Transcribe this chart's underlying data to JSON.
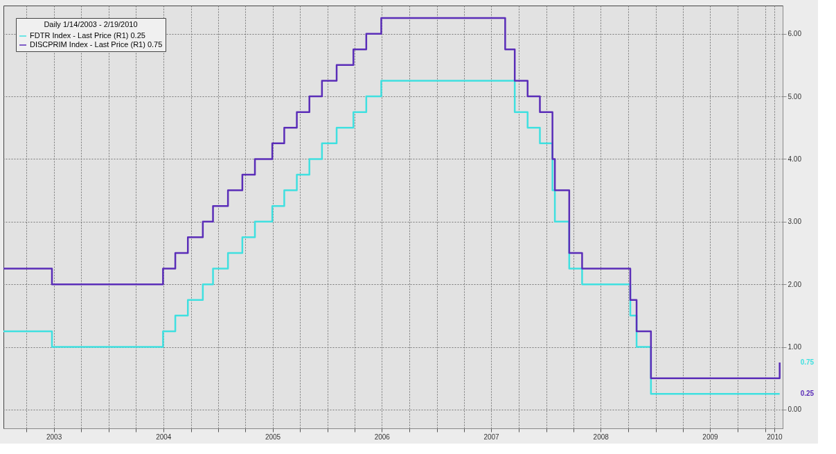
{
  "chart_data": {
    "type": "step",
    "legend_title": "Daily 1/14/2003 - 2/19/2010",
    "legend": "top left",
    "grid": true,
    "line_style": "solid",
    "marker": "none",
    "xlim": [
      "2003-01-14",
      "2010-03-01"
    ],
    "ylim": [
      -0.3,
      6.45
    ],
    "yticks": [
      {
        "value": 0,
        "label": "0.00"
      },
      {
        "value": 1,
        "label": "1.00"
      },
      {
        "value": 2,
        "label": "2.00"
      },
      {
        "value": 3,
        "label": "3.00"
      },
      {
        "value": 4,
        "label": "4.00"
      },
      {
        "value": 5,
        "label": "5.00"
      },
      {
        "value": 6,
        "label": "6.00"
      }
    ],
    "xticks": [
      {
        "value": "2003-04-01",
        "label": null
      },
      {
        "value": "2003-07-01",
        "label": "2003"
      },
      {
        "value": "2003-10-01",
        "label": null
      },
      {
        "value": "2004-01-01",
        "label": null
      },
      {
        "value": "2004-04-01",
        "label": null
      },
      {
        "value": "2004-07-01",
        "label": "2004"
      },
      {
        "value": "2004-10-01",
        "label": null
      },
      {
        "value": "2005-01-01",
        "label": null
      },
      {
        "value": "2005-04-01",
        "label": null
      },
      {
        "value": "2005-07-01",
        "label": "2005"
      },
      {
        "value": "2005-10-01",
        "label": null
      },
      {
        "value": "2006-01-01",
        "label": null
      },
      {
        "value": "2006-04-01",
        "label": null
      },
      {
        "value": "2006-07-01",
        "label": "2006"
      },
      {
        "value": "2006-10-01",
        "label": null
      },
      {
        "value": "2007-01-01",
        "label": null
      },
      {
        "value": "2007-04-01",
        "label": null
      },
      {
        "value": "2007-07-01",
        "label": "2007"
      },
      {
        "value": "2007-10-01",
        "label": null
      },
      {
        "value": "2008-01-01",
        "label": null
      },
      {
        "value": "2008-04-01",
        "label": null
      },
      {
        "value": "2008-07-01",
        "label": "2008"
      },
      {
        "value": "2008-10-01",
        "label": null
      },
      {
        "value": "2009-01-01",
        "label": null
      },
      {
        "value": "2009-04-01",
        "label": null
      },
      {
        "value": "2009-07-01",
        "label": "2009"
      },
      {
        "value": "2009-10-01",
        "label": null
      },
      {
        "value": "2010-01-01",
        "label": null
      },
      {
        "value": "2010-02-01",
        "label": "2010"
      }
    ],
    "series": [
      {
        "name": "FDTR Index - Last Price (R1) 0.25",
        "color": "#3fe0e0",
        "x": [
          "2003-01-14",
          "2003-06-25",
          "2004-06-30",
          "2004-08-10",
          "2004-09-21",
          "2004-11-10",
          "2004-12-14",
          "2005-02-02",
          "2005-03-22",
          "2005-05-03",
          "2005-06-30",
          "2005-08-09",
          "2005-09-20",
          "2005-11-01",
          "2005-12-13",
          "2006-01-31",
          "2006-03-28",
          "2006-05-10",
          "2006-06-29",
          "2007-09-18",
          "2007-10-31",
          "2007-12-11",
          "2008-01-22",
          "2008-01-30",
          "2008-03-18",
          "2008-04-30",
          "2008-10-08",
          "2008-10-29",
          "2008-12-16",
          "2010-02-19"
        ],
        "values": [
          1.25,
          1.0,
          1.25,
          1.5,
          1.75,
          2.0,
          2.25,
          2.5,
          2.75,
          3.0,
          3.25,
          3.5,
          3.75,
          4.0,
          4.25,
          4.5,
          4.75,
          5.0,
          5.25,
          4.75,
          4.5,
          4.25,
          3.5,
          3.0,
          2.25,
          2.0,
          1.5,
          1.0,
          0.25,
          0.25
        ]
      },
      {
        "name": "DISCPRIM Index - Last Price (R1) 0.75",
        "color": "#5a2db8",
        "x": [
          "2003-01-14",
          "2003-06-25",
          "2004-06-30",
          "2004-08-10",
          "2004-09-21",
          "2004-11-10",
          "2004-12-14",
          "2005-02-02",
          "2005-03-22",
          "2005-05-03",
          "2005-06-30",
          "2005-08-09",
          "2005-09-20",
          "2005-11-01",
          "2005-12-13",
          "2006-01-31",
          "2006-03-28",
          "2006-05-10",
          "2006-06-29",
          "2007-08-17",
          "2007-09-18",
          "2007-10-31",
          "2007-12-11",
          "2008-01-22",
          "2008-01-30",
          "2008-03-18",
          "2008-04-30",
          "2008-10-08",
          "2008-10-29",
          "2008-12-16",
          "2010-02-19"
        ],
        "values": [
          2.25,
          2.0,
          2.25,
          2.5,
          2.75,
          3.0,
          3.25,
          3.5,
          3.75,
          4.0,
          4.25,
          4.5,
          4.75,
          5.0,
          5.25,
          5.5,
          5.75,
          6.0,
          6.25,
          5.75,
          5.25,
          5.0,
          4.75,
          4.0,
          3.5,
          2.5,
          2.25,
          1.75,
          1.25,
          0.5,
          0.75
        ]
      }
    ],
    "annotations": [
      {
        "text": "0.75",
        "x": "2010-02-19",
        "y": 0.75
      },
      {
        "text": "0.25",
        "x": "2010-02-19",
        "y": 0.25
      }
    ]
  }
}
